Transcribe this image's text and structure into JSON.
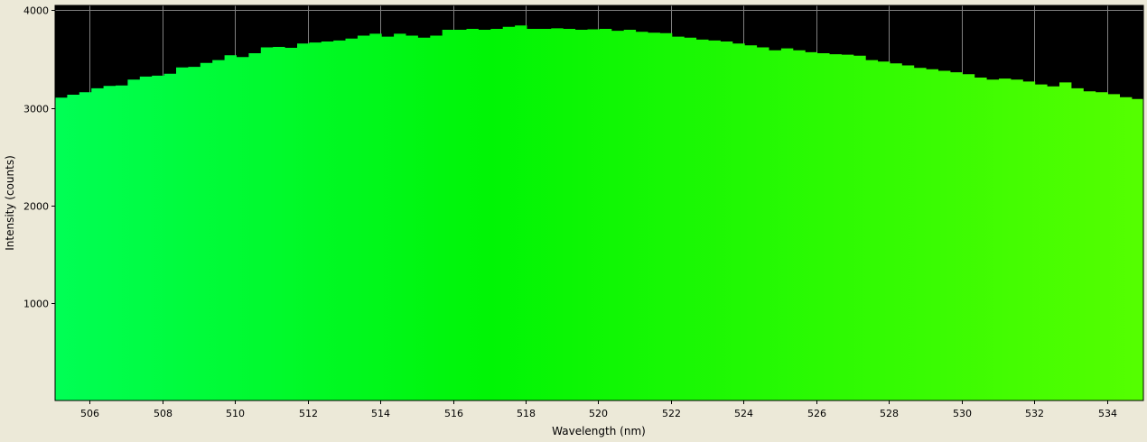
{
  "chart_data": {
    "type": "area",
    "title": "",
    "xlabel": "Wavelength (nm)",
    "ylabel": "Intensity (counts)",
    "xlim": [
      505.05,
      535.0
    ],
    "ylim": [
      0,
      4050
    ],
    "x_ticks": [
      506,
      508,
      510,
      512,
      514,
      516,
      518,
      520,
      522,
      524,
      526,
      528,
      530,
      532,
      534
    ],
    "y_ticks": [
      1000,
      2000,
      3000,
      4000
    ],
    "grid": true,
    "plot_background": "#000000",
    "fill_gradient": {
      "start_color": "#00ff55",
      "mid_color": "#00f505",
      "end_color": "#55ff00"
    },
    "step": 0.333,
    "x_start": 505.05,
    "values": [
      3105,
      3135,
      3160,
      3200,
      3225,
      3230,
      3290,
      3320,
      3330,
      3350,
      3415,
      3420,
      3460,
      3490,
      3540,
      3520,
      3560,
      3620,
      3625,
      3615,
      3660,
      3670,
      3680,
      3690,
      3710,
      3740,
      3760,
      3730,
      3760,
      3740,
      3720,
      3740,
      3800,
      3800,
      3810,
      3800,
      3810,
      3830,
      3845,
      3810,
      3810,
      3815,
      3810,
      3800,
      3805,
      3810,
      3790,
      3800,
      3780,
      3770,
      3765,
      3730,
      3720,
      3700,
      3690,
      3680,
      3660,
      3640,
      3620,
      3590,
      3610,
      3590,
      3570,
      3560,
      3550,
      3545,
      3535,
      3490,
      3475,
      3455,
      3435,
      3410,
      3395,
      3380,
      3365,
      3345,
      3310,
      3290,
      3300,
      3290,
      3270,
      3240,
      3220,
      3260,
      3200,
      3170,
      3160,
      3140,
      3110,
      3090
    ]
  }
}
